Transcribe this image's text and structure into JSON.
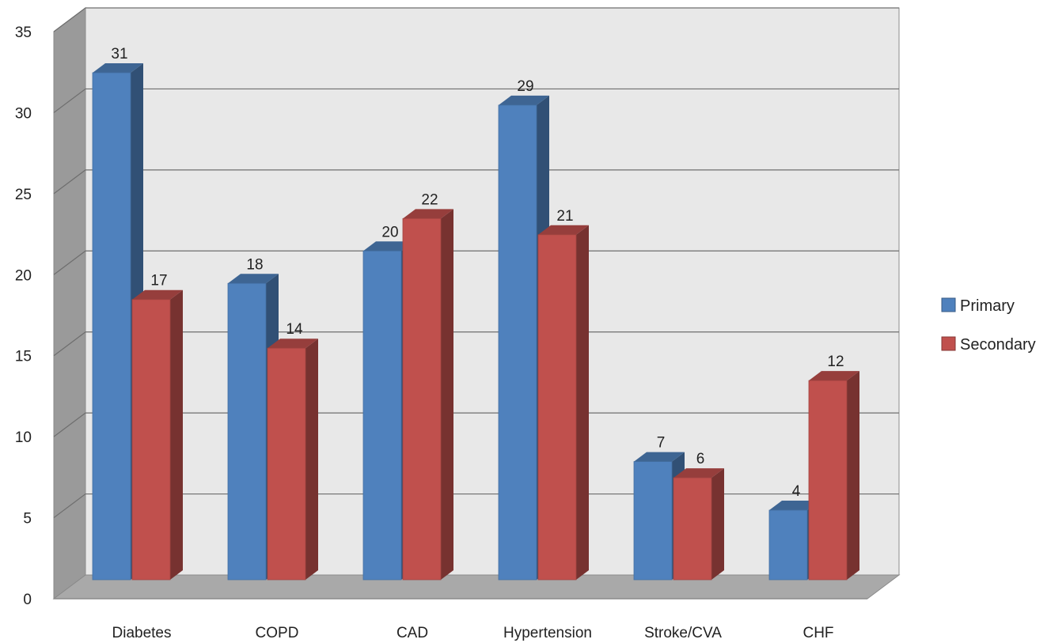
{
  "chart_data": {
    "type": "bar",
    "style": "3d-clustered-column",
    "categories": [
      "Diabetes",
      "COPD",
      "CAD",
      "Hypertension",
      "Stroke/CVA",
      "CHF"
    ],
    "series": [
      {
        "name": "Primary",
        "values": [
          31,
          18,
          20,
          29,
          7,
          4
        ],
        "color": "#4F81BD"
      },
      {
        "name": "Secondary",
        "values": [
          17,
          14,
          22,
          21,
          6,
          12
        ],
        "color": "#C0504D"
      }
    ],
    "yticks": [
      0,
      5,
      10,
      15,
      20,
      25,
      30,
      35
    ],
    "ylim": [
      0,
      35
    ],
    "title": "",
    "xlabel": "",
    "ylabel": "",
    "grid": true,
    "legend_position": "right",
    "data_labels": true
  }
}
